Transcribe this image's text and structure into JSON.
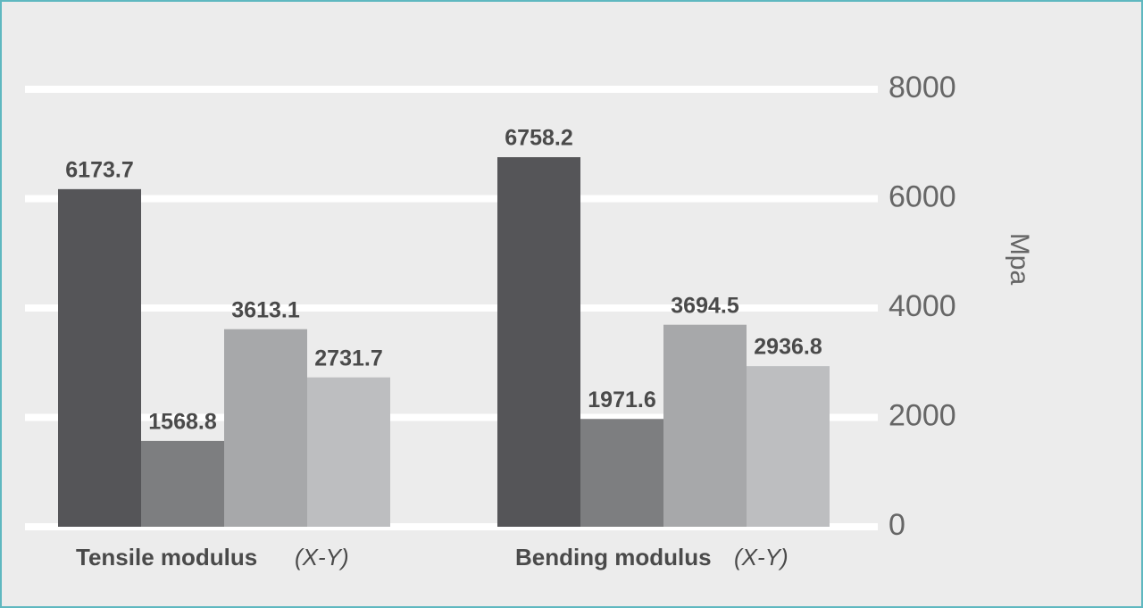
{
  "chart_data": {
    "type": "bar",
    "categories": [
      "Tensile modulus",
      "Bending modulus"
    ],
    "category_suffixes": [
      "(X-Y)",
      "(X-Y)"
    ],
    "series": [
      {
        "color": "#555558",
        "values": [
          6173.7,
          6758.2
        ]
      },
      {
        "color": "#7d7e80",
        "values": [
          1568.8,
          1971.6
        ]
      },
      {
        "color": "#a7a8aa",
        "values": [
          3613.1,
          3694.5
        ]
      },
      {
        "color": "#bdbec0",
        "values": [
          2731.7,
          2936.8
        ]
      }
    ],
    "y_axis_label": "Mpa",
    "ylim": [
      0,
      8000
    ],
    "yticks": [
      0,
      2000,
      4000,
      6000,
      8000
    ],
    "grid": true
  }
}
